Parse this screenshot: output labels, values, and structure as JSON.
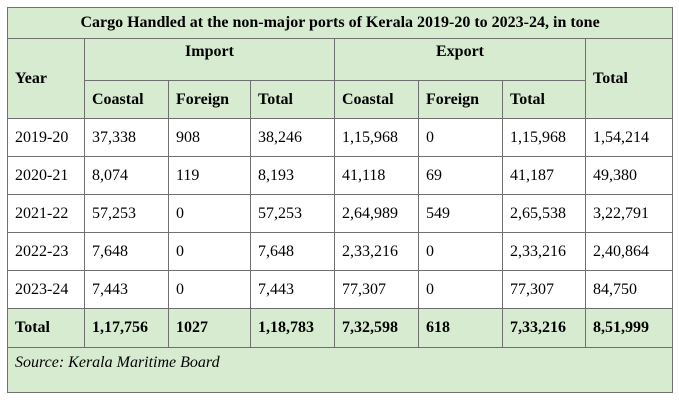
{
  "title": "Cargo Handled at the non-major ports of Kerala 2019-20 to 2023-24, in tone",
  "headers": {
    "year": "Year",
    "import": "Import",
    "export": "Export",
    "total": "Total",
    "sub": [
      "Coastal",
      "Foreign",
      "Total",
      "Coastal",
      "Foreign",
      "Total"
    ]
  },
  "rows": [
    [
      "2019-20",
      "37,338",
      "908",
      "38,246",
      "1,15,968",
      "0",
      "1,15,968",
      "1,54,214"
    ],
    [
      "2020-21",
      "8,074",
      "119",
      "8,193",
      "41,118",
      "69",
      "41,187",
      "49,380"
    ],
    [
      "2021-22",
      "57,253",
      "0",
      "57,253",
      "2,64,989",
      "549",
      "2,65,538",
      "3,22,791"
    ],
    [
      "2022-23",
      "7,648",
      "0",
      "7,648",
      "2,33,216",
      "0",
      "2,33,216",
      "2,40,864"
    ],
    [
      "2023-24",
      "7,443",
      "0",
      "7,443",
      "77,307",
      "0",
      "77,307",
      "84,750"
    ]
  ],
  "total_row": [
    "Total",
    "1,17,756",
    "1027",
    "1,18,783",
    "7,32,598",
    "618",
    "7,33,216",
    "8,51,999"
  ],
  "source": "Source: Kerala Maritime Board"
}
